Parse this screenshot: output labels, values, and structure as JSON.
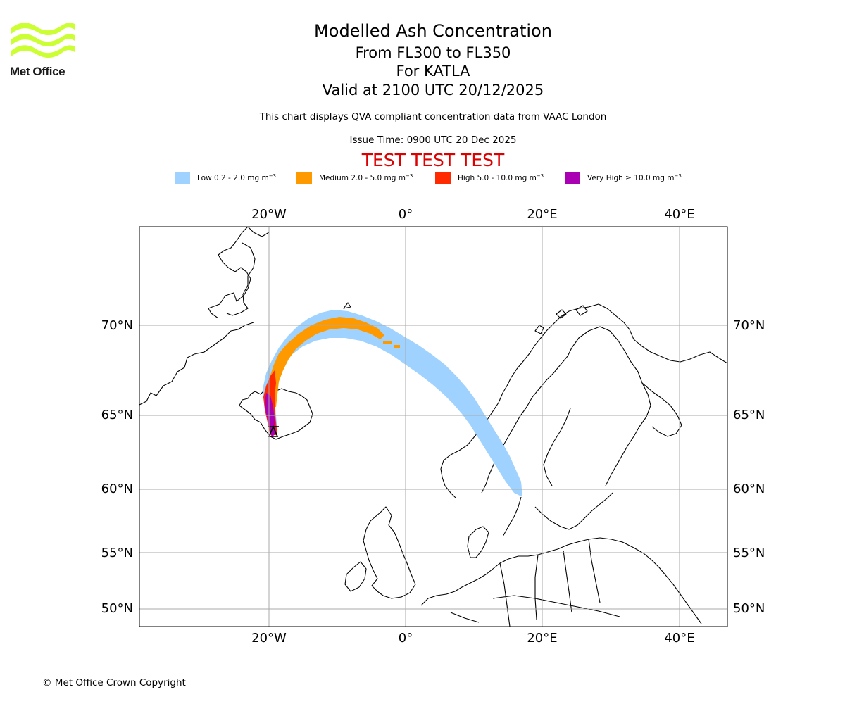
{
  "logo": {
    "text": "Met Office"
  },
  "title": {
    "main": "Modelled Ash Concentration",
    "flight_levels": "From FL300 to FL350",
    "volcano": "For KATLA",
    "valid": "Valid at 2100 UTC 20/12/2025"
  },
  "description": "This chart displays QVA compliant concentration data from VAAC London",
  "issue_time": "Issue Time: 0900 UTC 20 Dec 2025",
  "test_banner": "TEST TEST TEST",
  "legend": [
    {
      "label": "Low 0.2 - 2.0 mg m",
      "exponent": "−3",
      "color": "#a0d2ff"
    },
    {
      "label": "Medium 2.0 - 5.0 mg m",
      "exponent": "−3",
      "color": "#ff9900"
    },
    {
      "label": "High 5.0 - 10.0 mg m",
      "exponent": "−3",
      "color": "#ff2a00"
    },
    {
      "label": "Very High ≥ 10.0 mg m",
      "exponent": "−3",
      "color": "#aa00b4"
    }
  ],
  "axes": {
    "longitude_labels": [
      "20°W",
      "0°",
      "20°E",
      "40°E"
    ],
    "latitude_labels": [
      "70°N",
      "65°N",
      "60°N",
      "55°N",
      "50°N"
    ]
  },
  "copyright": "© Met Office Crown Copyright"
}
